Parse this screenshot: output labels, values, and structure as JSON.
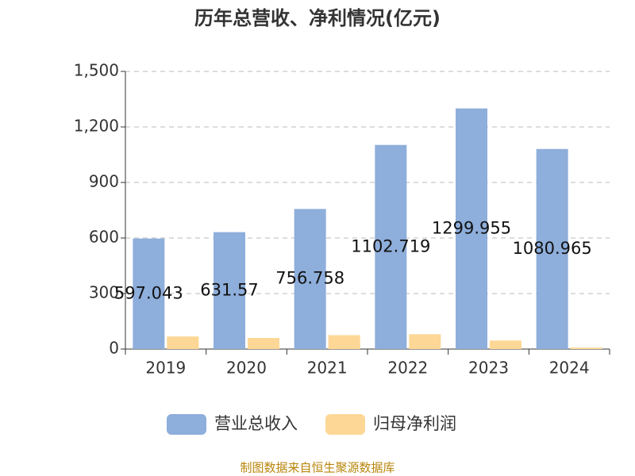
{
  "chart_data": {
    "type": "bar",
    "title": "历年总营收、净利情况(亿元)",
    "categories": [
      "2019",
      "2020",
      "2021",
      "2022",
      "2023",
      "2024"
    ],
    "series": [
      {
        "name": "营业总收入",
        "color": "#8eaedb",
        "values": [
          597.043,
          631.57,
          756.758,
          1102.719,
          1299.955,
          1080.965
        ]
      },
      {
        "name": "归母净利润",
        "color": "#fdd795",
        "values": [
          68,
          60,
          75,
          80,
          46,
          8
        ]
      }
    ],
    "ylim": [
      0,
      1500
    ],
    "yticks": [
      0,
      300,
      600,
      900,
      {
        "value": 1200,
        "label": "1,200"
      },
      {
        "value": 1500,
        "label": "1,500"
      }
    ],
    "grid": true,
    "legend": "bottom",
    "source": "制图数据来自恒生聚源数据库"
  }
}
